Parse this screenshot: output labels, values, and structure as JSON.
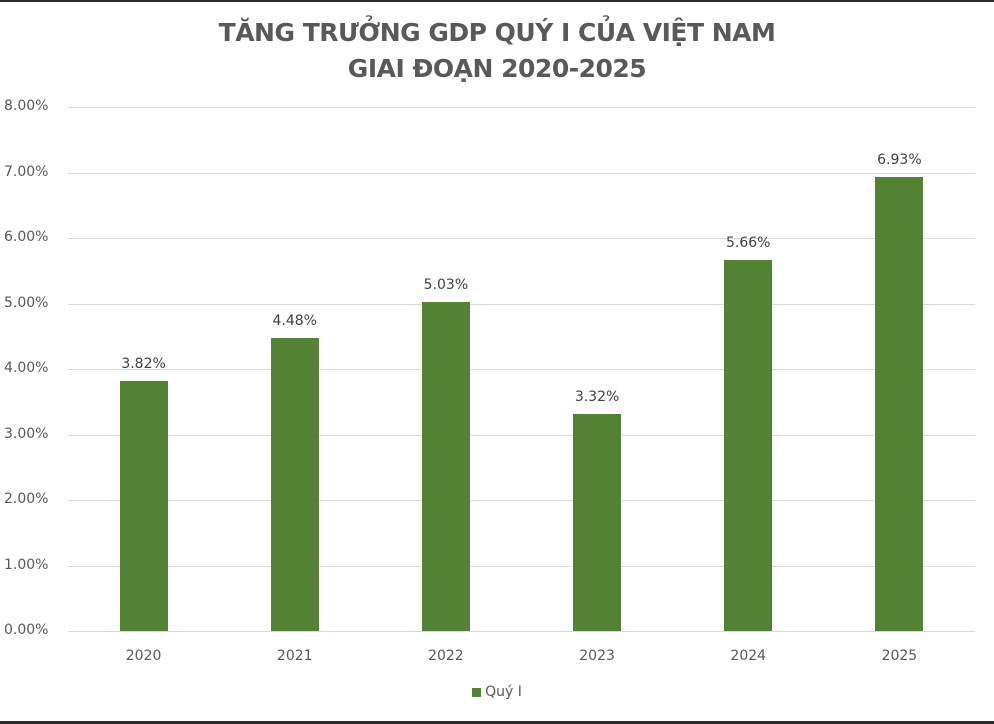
{
  "chart_data": {
    "type": "bar",
    "title": "TĂNG TRƯỞNG GDP QUÝ I CỦA VIỆT NAM GIAI ĐOẠN 2020-2025",
    "title_lines": [
      "TĂNG TRƯỞNG GDP QUÝ I CỦA VIỆT NAM",
      "GIAI ĐOẠN 2020-2025"
    ],
    "categories": [
      "2020",
      "2021",
      "2022",
      "2023",
      "2024",
      "2025"
    ],
    "series": [
      {
        "name": "Quý I",
        "values": [
          3.82,
          4.48,
          5.03,
          3.32,
          5.66,
          6.93
        ],
        "color": "#548235"
      }
    ],
    "data_labels": [
      "3.82%",
      "4.48%",
      "5.03%",
      "3.32%",
      "5.66%",
      "6.93%"
    ],
    "xlabel": "",
    "ylabel": "",
    "ylim": [
      0,
      8
    ],
    "yticks": [
      "0.00%",
      "1.00%",
      "2.00%",
      "3.00%",
      "4.00%",
      "5.00%",
      "6.00%",
      "7.00%",
      "8.00%"
    ],
    "grid": true,
    "legend": {
      "position": "bottom",
      "entries": [
        "Quý I"
      ]
    }
  }
}
